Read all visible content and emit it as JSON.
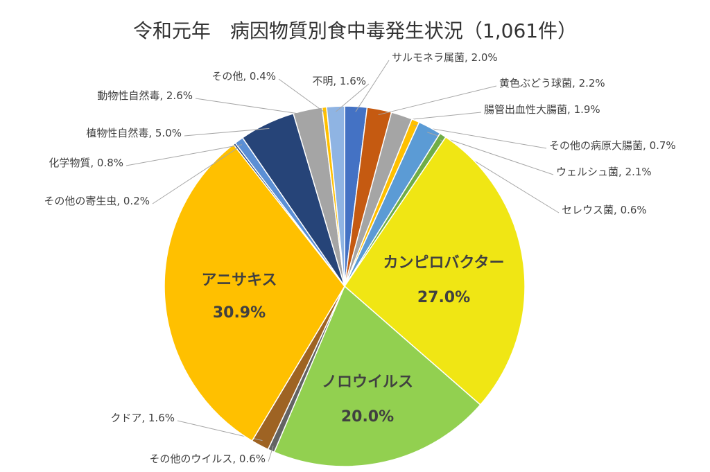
{
  "chart_data": {
    "type": "pie",
    "title": "令和元年　病因物質別食中毒発生状況（1,061件）",
    "label_separator": ", ",
    "categories": [
      "サルモネラ属菌",
      "黄色ぶどう球菌",
      "腸管出血性大腸菌",
      "その他の病原大腸菌",
      "ウェルシュ菌",
      "セレウス菌",
      "カンピロバクター",
      "ノロウイルス",
      "その他のウイルス",
      "クドア",
      "アニサキス",
      "その他の寄生虫",
      "化学物質",
      "植物性自然毒",
      "動物性自然毒",
      "その他",
      "不明"
    ],
    "values": [
      2.0,
      2.2,
      1.9,
      0.7,
      2.1,
      0.6,
      27.0,
      20.0,
      0.6,
      1.6,
      30.9,
      0.2,
      0.8,
      5.0,
      2.6,
      0.4,
      1.6
    ],
    "value_labels": [
      "2.0%",
      "2.2%",
      "1.9%",
      "0.7%",
      "2.1%",
      "0.6%",
      "27.0%",
      "20.0%",
      "0.6%",
      "1.6%",
      "30.9%",
      "0.2%",
      "0.8%",
      "5.0%",
      "2.6%",
      "0.4%",
      "1.6%"
    ],
    "colors": [
      "#4472c4",
      "#c55a11",
      "#a5a5a5",
      "#ffc000",
      "#5b9bd5",
      "#70ad47",
      "#f0e614",
      "#92d050",
      "#636363",
      "#9e6323",
      "#ffc000",
      "#264478",
      "#5b8fd5",
      "#264478",
      "#a5a5a5",
      "#ffc000",
      "#8fb4e3"
    ]
  }
}
